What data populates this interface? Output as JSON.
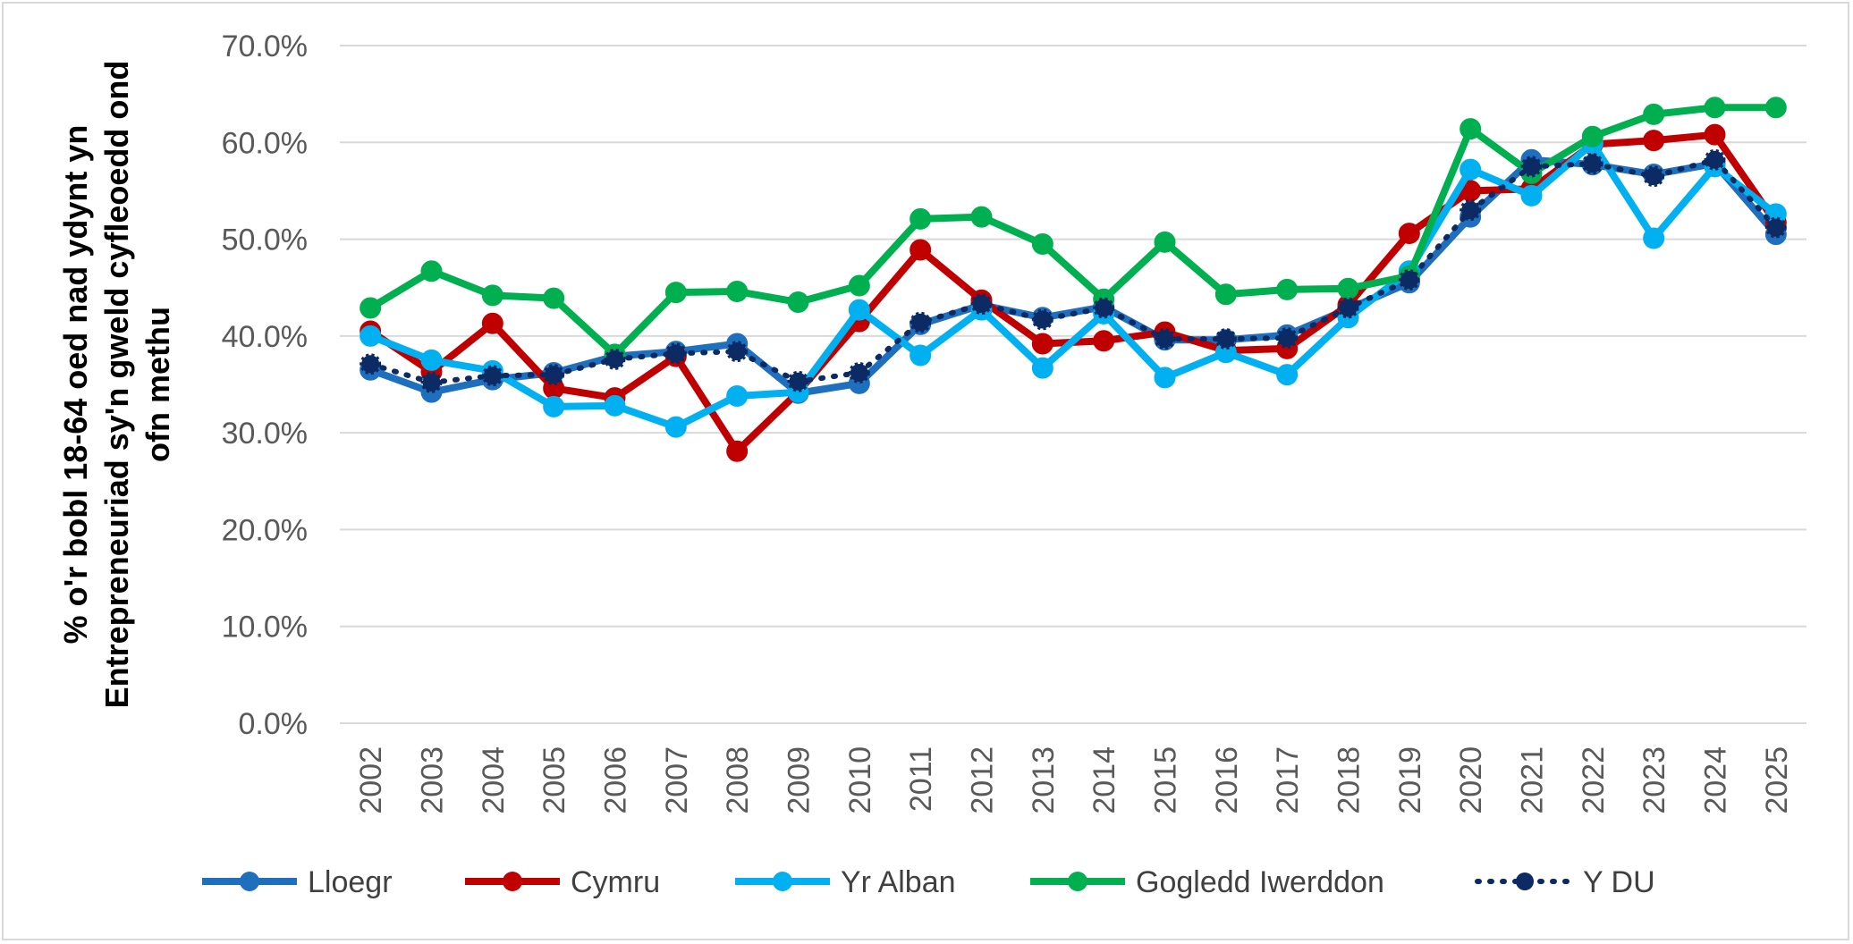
{
  "chart_data": {
    "type": "line",
    "ylabel_lines": [
      "% o'r bobl 18-64 oed nad ydynt yn",
      "Entrepreneuriad sy'n gweld cyfleoedd ond",
      "ofn methu"
    ],
    "xlabel": "",
    "ylim": [
      0,
      70
    ],
    "yticks": [
      "0.0%",
      "10.0%",
      "20.0%",
      "30.0%",
      "40.0%",
      "50.0%",
      "60.0%",
      "70.0%"
    ],
    "grid": true,
    "legend_position": "bottom",
    "categories": [
      "2002",
      "2003",
      "2004",
      "2005",
      "2006",
      "2007",
      "2008",
      "2009",
      "2010",
      "2011",
      "2012",
      "2013",
      "2014",
      "2015",
      "2016",
      "2017",
      "2018",
      "2019",
      "2020",
      "2021",
      "2022",
      "2023",
      "2024",
      "2025"
    ],
    "series": [
      {
        "name": "Lloegr",
        "color": "#1f6fbf",
        "style": "solid",
        "values": [
          36.5,
          34.2,
          35.5,
          36.2,
          37.9,
          38.4,
          39.2,
          34.1,
          35.1,
          41.2,
          43.2,
          41.9,
          43.0,
          39.6,
          39.6,
          40.1,
          42.8,
          45.5,
          52.3,
          58.2,
          57.7,
          56.7,
          57.8,
          50.5
        ]
      },
      {
        "name": "Cymru",
        "color": "#c00000",
        "style": "solid",
        "values": [
          40.5,
          36.3,
          41.3,
          34.6,
          33.6,
          37.9,
          28.1,
          34.2,
          41.5,
          48.9,
          43.7,
          39.2,
          39.5,
          40.4,
          38.5,
          38.7,
          43.2,
          50.6,
          55.0,
          55.2,
          59.8,
          60.2,
          60.8,
          51.7
        ]
      },
      {
        "name": "Yr Alban",
        "color": "#00b0f0",
        "style": "solid",
        "values": [
          40.0,
          37.5,
          36.4,
          32.7,
          32.8,
          30.6,
          33.8,
          34.2,
          42.7,
          38.0,
          42.7,
          36.7,
          42.3,
          35.7,
          38.3,
          36.0,
          41.9,
          46.7,
          57.2,
          54.5,
          59.9,
          50.1,
          57.5,
          52.6
        ]
      },
      {
        "name": "Gogledd Iwerddon",
        "color": "#00b050",
        "style": "solid",
        "values": [
          42.9,
          46.7,
          44.2,
          43.9,
          38.1,
          44.5,
          44.6,
          43.5,
          45.2,
          52.1,
          52.3,
          49.5,
          43.8,
          49.7,
          44.3,
          44.8,
          44.9,
          46.2,
          61.4,
          56.8,
          60.6,
          62.9,
          63.6,
          63.6
        ]
      },
      {
        "name": "Y DU",
        "color": "#0c2a63",
        "style": "dotted",
        "values": [
          37.1,
          35.2,
          35.9,
          36.0,
          37.6,
          38.2,
          38.4,
          35.3,
          36.2,
          41.4,
          43.3,
          41.7,
          42.9,
          39.7,
          39.7,
          39.8,
          42.9,
          45.8,
          53.0,
          57.5,
          57.8,
          56.5,
          58.2,
          51.2
        ]
      }
    ]
  }
}
